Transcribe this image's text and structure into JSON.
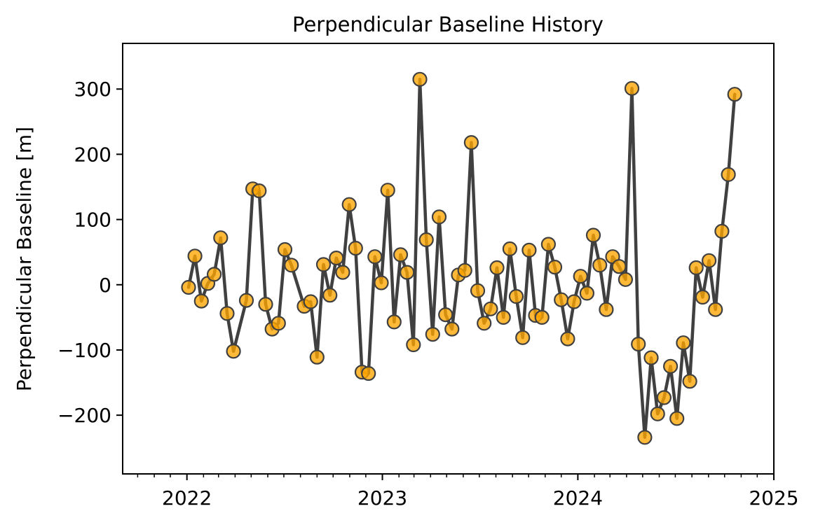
{
  "chart_data": {
    "type": "line",
    "title": "Perpendicular Baseline History",
    "xlabel": "",
    "ylabel": "Perpendicular Baseline [m]",
    "x_axis": "date",
    "xlim": [
      "2021-09-03",
      "2025-01-01"
    ],
    "ylim": [
      -290,
      370
    ],
    "x_ticks": [
      "2022",
      "2023",
      "2024",
      "2025"
    ],
    "y_ticks": [
      -200,
      -100,
      0,
      100,
      200,
      300
    ],
    "y_tick_labels": [
      "−200",
      "−100",
      "0",
      "100",
      "200",
      "300"
    ],
    "grid": false,
    "line_color": "#404040",
    "marker_color": "#FFA500",
    "marker_edge_color": "#404040",
    "series": [
      {
        "x": [
          "2022-01-04",
          "2022-01-16",
          "2022-01-28",
          "2022-02-09",
          "2022-02-21",
          "2022-03-05",
          "2022-03-17",
          "2022-03-29",
          "2022-04-22",
          "2022-05-04",
          "2022-05-16",
          "2022-05-28",
          "2022-06-09",
          "2022-06-21",
          "2022-07-03",
          "2022-07-15",
          "2022-08-08",
          "2022-08-20",
          "2022-09-01",
          "2022-09-13",
          "2022-09-25",
          "2022-10-07",
          "2022-10-19",
          "2022-10-31",
          "2022-11-12",
          "2022-11-24",
          "2022-12-06",
          "2022-12-18",
          "2022-12-30",
          "2023-01-11",
          "2023-01-23",
          "2023-02-04",
          "2023-02-16",
          "2023-02-28",
          "2023-03-12",
          "2023-03-24",
          "2023-04-05",
          "2023-04-17",
          "2023-04-29",
          "2023-05-11",
          "2023-05-23",
          "2023-06-04",
          "2023-06-16",
          "2023-06-28",
          "2023-07-10",
          "2023-07-22",
          "2023-08-03",
          "2023-08-15",
          "2023-08-27",
          "2023-09-08",
          "2023-09-20",
          "2023-10-02",
          "2023-10-14",
          "2023-10-26",
          "2023-11-07",
          "2023-11-19",
          "2023-12-01",
          "2023-12-13",
          "2023-12-25",
          "2024-01-06",
          "2024-01-18",
          "2024-01-30",
          "2024-02-11",
          "2024-02-23",
          "2024-03-06",
          "2024-03-18",
          "2024-03-30",
          "2024-04-11",
          "2024-04-23",
          "2024-05-05",
          "2024-05-17",
          "2024-05-29",
          "2024-06-10",
          "2024-06-22",
          "2024-07-04",
          "2024-07-16",
          "2024-07-28",
          "2024-08-09",
          "2024-08-21",
          "2024-09-02",
          "2024-09-14",
          "2024-09-26",
          "2024-10-08",
          "2024-10-20"
        ],
        "values": [
          -4,
          44,
          -25,
          2,
          16,
          72,
          -44,
          -102,
          -24,
          147,
          144,
          -30,
          -68,
          -59,
          54,
          30,
          -33,
          -26,
          -111,
          31,
          -16,
          41,
          19,
          123,
          56,
          -134,
          -136,
          43,
          3,
          145,
          -57,
          46,
          19,
          -92,
          315,
          69,
          -76,
          104,
          -46,
          -68,
          15,
          22,
          218,
          -9,
          -59,
          -37,
          26,
          -50,
          55,
          -18,
          -81,
          53,
          -47,
          -50,
          62,
          27,
          -23,
          -83,
          -26,
          13,
          -13,
          76,
          30,
          -38,
          43,
          28,
          8,
          301,
          -91,
          -234,
          -112,
          -198,
          -173,
          -125,
          -205,
          -89,
          -148,
          26,
          -19,
          37,
          -38,
          82,
          169,
          292
        ]
      }
    ]
  }
}
